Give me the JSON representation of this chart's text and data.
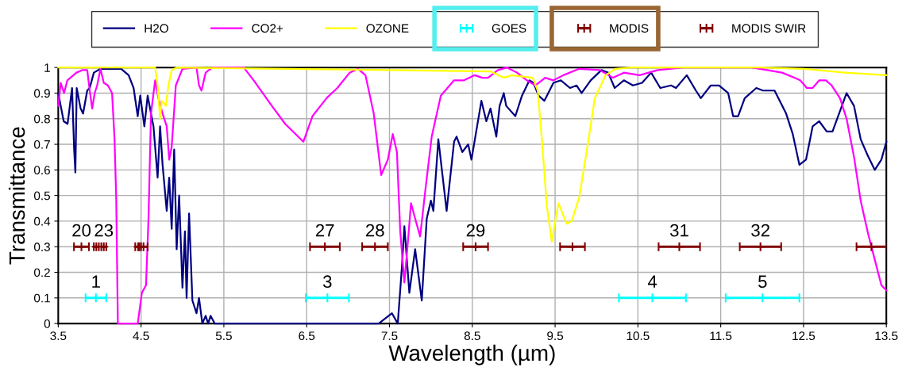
{
  "chart_data": {
    "type": "line",
    "xlabel": "Wavelength (µm)",
    "ylabel": "Transmittance",
    "xlim": [
      3.5,
      13.5
    ],
    "ylim": [
      0,
      1
    ],
    "xticks": [
      3.5,
      4.5,
      5.5,
      6.5,
      7.5,
      8.5,
      9.5,
      10.5,
      11.5,
      12.5,
      13.5
    ],
    "yticks": [
      0,
      0.1,
      0.2,
      0.3,
      0.4,
      0.5,
      0.6,
      0.7,
      0.8,
      0.9,
      1
    ],
    "grid": true,
    "legend": "top",
    "marker": "none",
    "line_style": "solid",
    "series": [
      {
        "name": "H2O",
        "color": "#000080",
        "x": [
          3.5,
          3.566,
          3.613,
          3.667,
          3.692,
          3.707,
          3.723,
          3.77,
          3.8,
          3.85,
          3.88,
          3.93,
          4.01,
          4.26,
          4.35,
          4.41,
          4.46,
          4.49,
          4.54,
          4.58,
          4.62,
          4.65,
          4.7,
          4.73,
          4.76,
          4.81,
          4.84,
          4.87,
          4.9,
          4.93,
          4.96,
          5.0,
          5.03,
          5.05,
          5.08,
          5.12,
          5.17,
          5.2,
          5.24,
          5.28,
          5.31,
          5.34,
          5.39,
          7.37,
          7.53,
          7.6,
          7.65,
          7.68,
          7.74,
          7.81,
          7.89,
          7.95,
          8.0,
          8.03,
          8.09,
          8.19,
          8.28,
          8.31,
          8.38,
          8.45,
          8.49,
          8.61,
          8.67,
          8.72,
          8.79,
          8.83,
          8.88,
          8.91,
          9.02,
          9.1,
          9.19,
          9.24,
          9.3,
          9.37,
          9.48,
          9.57,
          9.68,
          9.76,
          9.82,
          9.93,
          10.06,
          10.14,
          10.22,
          10.33,
          10.44,
          10.55,
          10.66,
          10.77,
          10.9,
          10.96,
          11.09,
          11.2,
          11.26,
          11.38,
          11.48,
          11.59,
          11.65,
          11.71,
          11.79,
          11.93,
          12.01,
          12.15,
          12.29,
          12.37,
          12.45,
          12.53,
          12.61,
          12.69,
          12.78,
          12.85,
          13.02,
          13.11,
          13.19,
          13.27,
          13.36,
          13.44,
          13.5
        ],
        "values": [
          0.9,
          0.79,
          0.78,
          0.92,
          0.68,
          0.59,
          0.92,
          0.84,
          0.82,
          0.91,
          0.92,
          0.98,
          0.995,
          0.995,
          0.97,
          0.92,
          0.81,
          0.89,
          0.77,
          0.89,
          0.82,
          0.77,
          0.57,
          0.77,
          0.62,
          0.44,
          0.57,
          0.37,
          0.68,
          0.29,
          0.5,
          0.14,
          0.36,
          0.1,
          0.43,
          0.09,
          0.04,
          0.1,
          0,
          0.03,
          0,
          0.03,
          0,
          0,
          0.04,
          0,
          0.22,
          0.38,
          0.12,
          0.29,
          0.09,
          0.41,
          0.48,
          0.44,
          0.72,
          0.44,
          0.71,
          0.73,
          0.67,
          0.7,
          0.64,
          0.87,
          0.79,
          0.84,
          0.73,
          0.85,
          0.9,
          0.85,
          0.81,
          0.89,
          0.95,
          0.94,
          0.89,
          0.87,
          0.94,
          0.95,
          0.92,
          0.93,
          0.9,
          0.95,
          0.99,
          0.98,
          0.92,
          0.95,
          0.93,
          0.94,
          0.98,
          0.92,
          0.93,
          0.92,
          0.97,
          0.91,
          0.88,
          0.93,
          0.93,
          0.9,
          0.81,
          0.81,
          0.88,
          0.92,
          0.91,
          0.91,
          0.82,
          0.74,
          0.62,
          0.64,
          0.77,
          0.79,
          0.75,
          0.75,
          0.9,
          0.85,
          0.72,
          0.66,
          0.6,
          0.64,
          0.71
        ]
      },
      {
        "name": "CO2+",
        "color": "#ff00ff",
        "x": [
          3.5,
          3.53,
          3.57,
          3.61,
          3.72,
          3.79,
          3.85,
          3.88,
          3.91,
          3.94,
          3.97,
          4.01,
          4.05,
          4.1,
          4.15,
          4.18,
          4.2,
          4.22,
          4.46,
          4.51,
          4.56,
          4.59,
          4.62,
          4.67,
          4.71,
          4.76,
          4.81,
          4.84,
          4.87,
          4.92,
          5.0,
          5.17,
          5.2,
          5.23,
          5.28,
          5.36,
          5.74,
          5.86,
          6.08,
          6.24,
          6.46,
          6.57,
          6.74,
          6.87,
          7.02,
          7.12,
          7.21,
          7.31,
          7.4,
          7.48,
          7.54,
          7.59,
          7.63,
          7.68,
          7.72,
          7.76,
          7.81,
          7.87,
          7.94,
          8.01,
          8.12,
          8.28,
          8.4,
          8.53,
          8.62,
          8.69,
          8.81,
          8.92,
          9.04,
          9.16,
          9.26,
          9.38,
          9.48,
          9.6,
          9.79,
          10.04,
          10.2,
          10.33,
          10.52,
          10.74,
          11.05,
          11.87,
          12.06,
          12.24,
          12.39,
          12.46,
          12.54,
          12.61,
          12.69,
          12.77,
          12.84,
          12.94,
          13.02,
          13.11,
          13.19,
          13.28,
          13.36,
          13.44,
          13.5
        ],
        "values": [
          0.85,
          0.94,
          0.9,
          0.95,
          0.98,
          0.99,
          0.99,
          0.91,
          0.84,
          0.9,
          0.93,
          0.995,
          0.94,
          0.93,
          0.9,
          0.72,
          0.49,
          0,
          0,
          0.12,
          0.15,
          0.41,
          0.82,
          0.95,
          0.88,
          0.82,
          0.77,
          0.64,
          0.69,
          0.93,
          0.995,
          1,
          0.93,
          0.91,
          0.98,
          1,
          1,
          0.95,
          0.85,
          0.78,
          0.71,
          0.81,
          0.88,
          0.92,
          0.98,
          0.995,
          0.97,
          0.82,
          0.58,
          0.64,
          0.74,
          0.67,
          0.36,
          0.16,
          0.31,
          0.47,
          0.41,
          0.34,
          0.54,
          0.73,
          0.89,
          0.95,
          0.95,
          0.97,
          0.96,
          0.96,
          0.99,
          1,
          0.98,
          0.95,
          0.93,
          0.96,
          0.95,
          0.97,
          0.995,
          0.99,
          0.96,
          0.98,
          0.97,
          0.99,
          1,
          1,
          0.99,
          0.98,
          0.96,
          0.95,
          0.92,
          0.92,
          0.95,
          0.95,
          0.93,
          0.88,
          0.8,
          0.65,
          0.48,
          0.35,
          0.25,
          0.15,
          0.13
        ]
      },
      {
        "name": "OZONE",
        "color": "#ffff00",
        "x": [
          3.5,
          4.67,
          4.7,
          4.73,
          4.75,
          4.78,
          4.8,
          4.83,
          4.87,
          4.93,
          8.72,
          8.88,
          8.98,
          9.23,
          9.29,
          9.34,
          9.4,
          9.46,
          9.54,
          9.64,
          9.7,
          9.79,
          9.89,
          9.98,
          10.11,
          10.23,
          10.42,
          12.0,
          12.5,
          13.0,
          13.5
        ],
        "values": [
          1,
          1,
          0.93,
          0.8,
          0.87,
          0.86,
          0.85,
          0.93,
          0.99,
          1,
          0.985,
          0.96,
          0.97,
          0.96,
          0.91,
          0.72,
          0.46,
          0.32,
          0.47,
          0.39,
          0.4,
          0.49,
          0.69,
          0.88,
          0.97,
          0.995,
          1,
          1,
          0.995,
          0.98,
          0.97
        ]
      },
      {
        "name": "GOES",
        "color": "#00ffff",
        "type": "scatter",
        "marker": "cross",
        "x": [
          3.955,
          6.75,
          10.675,
          12.005
        ],
        "values": [
          0.1,
          0.1,
          0.1,
          0.1
        ],
        "xerrors": [
          0.125,
          0.26,
          0.405,
          0.445
        ]
      },
      {
        "name": "MODIS",
        "color": "#800000",
        "type": "scatter",
        "marker": "cross",
        "x": [
          6.72,
          7.325,
          8.54,
          9.71,
          11.0,
          11.98,
          13.32
        ],
        "values": [
          0.3,
          0.3,
          0.3,
          0.3,
          0.3,
          0.3,
          0.3
        ],
        "xerrors": [
          0.18,
          0.155,
          0.15,
          0.15,
          0.25,
          0.25,
          0.18
        ]
      },
      {
        "name": "MODIS SWIR",
        "color": "#800000",
        "type": "scatter",
        "marker": "cross",
        "x": [
          3.78,
          3.96,
          4.05,
          4.465,
          4.53
        ],
        "values": [
          0.3,
          0.3,
          0.3,
          0.3,
          0.3
        ],
        "xerrors": [
          0.09,
          0.03,
          0.03,
          0.035,
          0.05
        ]
      }
    ],
    "annotations": [
      {
        "text": "20",
        "x": 3.78,
        "y": 0.3
      },
      {
        "text": "23",
        "x": 4.05,
        "y": 0.3
      },
      {
        "text": "27",
        "x": 6.72,
        "y": 0.3
      },
      {
        "text": "28",
        "x": 7.325,
        "y": 0.3
      },
      {
        "text": "29",
        "x": 8.54,
        "y": 0.3
      },
      {
        "text": "31",
        "x": 11.0,
        "y": 0.3
      },
      {
        "text": "32",
        "x": 11.98,
        "y": 0.3
      },
      {
        "text": "1",
        "x": 3.955,
        "y": 0.1
      },
      {
        "text": "3",
        "x": 6.75,
        "y": 0.1
      },
      {
        "text": "4",
        "x": 10.675,
        "y": 0.1
      },
      {
        "text": "5",
        "x": 12.005,
        "y": 0.1
      }
    ]
  }
}
